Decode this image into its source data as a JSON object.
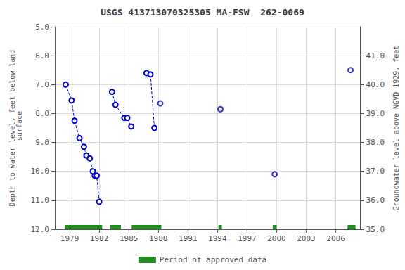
{
  "chart_data": {
    "type": "line",
    "title": "USGS 413713070325305 MA-FSW  262-0069",
    "ylabel": "Depth to water level, feet below land\n surface",
    "y2label": "Groundwater level above NGVD 1929, feet",
    "xlim": [
      1977.5,
      2008.5
    ],
    "xticks": [
      1979,
      1982,
      1985,
      1988,
      1991,
      1994,
      1997,
      2000,
      2003,
      2006
    ],
    "ylim": [
      12,
      5
    ],
    "yticks": [
      {
        "value": 5,
        "label": "5.0"
      },
      {
        "value": 6,
        "label": "6.0"
      },
      {
        "value": 7,
        "label": "7.0"
      },
      {
        "value": 8,
        "label": "8.0"
      },
      {
        "value": 9,
        "label": "9.0"
      },
      {
        "value": 10,
        "label": "10.0"
      },
      {
        "value": 11,
        "label": "11.0"
      },
      {
        "value": 12,
        "label": "12.0"
      }
    ],
    "y2lim": [
      35,
      42
    ],
    "y2ticks": [
      {
        "value": 41,
        "label": "41.0"
      },
      {
        "value": 40,
        "label": "40.0"
      },
      {
        "value": 39,
        "label": "39.0"
      },
      {
        "value": 38,
        "label": "38.0"
      },
      {
        "value": 37,
        "label": "37.0"
      },
      {
        "value": 36,
        "label": "36.0"
      },
      {
        "value": 35,
        "label": "35.0"
      }
    ],
    "grid": true,
    "color": "#0000cd",
    "series": [
      {
        "type": "line",
        "line_style": "dashed",
        "marker": "open_circle",
        "x": [
          1978.6,
          1979.2,
          1979.5,
          1980.0,
          1980.45,
          1980.7,
          1981.05,
          1981.35,
          1981.55,
          1981.75,
          1982.0
        ],
        "values": [
          7.0,
          7.55,
          8.25,
          8.85,
          9.15,
          9.45,
          9.55,
          10.0,
          10.15,
          10.15,
          11.05
        ]
      },
      {
        "type": "line",
        "line_style": "dashed",
        "marker": "open_circle",
        "x": [
          1983.3,
          1983.65,
          1984.55,
          1984.85,
          1985.25
        ],
        "values": [
          7.25,
          7.7,
          8.15,
          8.15,
          8.45
        ]
      },
      {
        "type": "line",
        "line_style": "dashed",
        "marker": "open_circle",
        "x": [
          1986.8,
          1987.2,
          1987.6
        ],
        "values": [
          6.6,
          6.65,
          8.5
        ]
      },
      {
        "type": "scatter",
        "marker": "open_circle",
        "x": [
          1988.2,
          1994.3,
          1999.8,
          2007.5
        ],
        "values": [
          7.65,
          7.85,
          10.1,
          6.5
        ]
      }
    ],
    "approved_periods": {
      "name": "Period of approved data",
      "color": "#228B22",
      "ranges": [
        [
          1978.5,
          1982.3
        ],
        [
          1983.1,
          1984.2
        ],
        [
          1985.3,
          1988.3
        ],
        [
          1994.1,
          1994.45
        ],
        [
          1999.6,
          2000.0
        ],
        [
          2007.2,
          2008.0
        ]
      ]
    },
    "legend": "bottom"
  }
}
